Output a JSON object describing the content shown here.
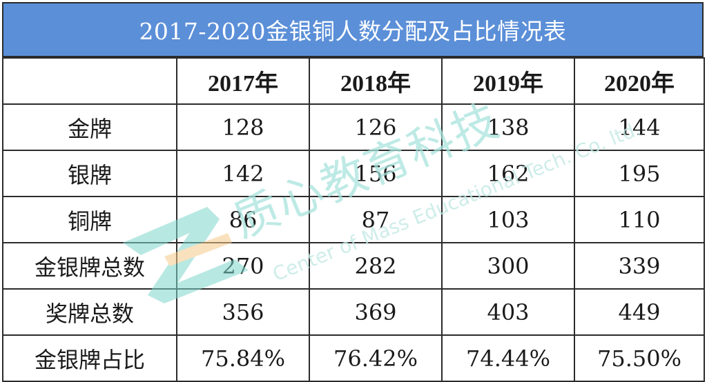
{
  "table": {
    "title": "2017-2020金银铜人数分配及占比情况表",
    "headers": [
      "",
      "2017年",
      "2018年",
      "2019年",
      "2020年"
    ],
    "rows": [
      {
        "label": "金牌",
        "values": [
          "128",
          "126",
          "138",
          "144"
        ]
      },
      {
        "label": "银牌",
        "values": [
          "142",
          "156",
          "162",
          "195"
        ]
      },
      {
        "label": "铜牌",
        "values": [
          "86",
          "87",
          "103",
          "110"
        ]
      },
      {
        "label": "金银牌总数",
        "values": [
          "270",
          "282",
          "300",
          "339"
        ]
      },
      {
        "label": "奖牌总数",
        "values": [
          "356",
          "369",
          "403",
          "449"
        ]
      },
      {
        "label": "金银牌占比",
        "values": [
          "75.84%",
          "76.42%",
          "74.44%",
          "75.50%"
        ]
      }
    ]
  },
  "watermark": {
    "cn_text": "质心教育科技",
    "en_text": "Center of Mass Educational Tech. Co. ltd.",
    "logo_letter": "Z",
    "colors": {
      "teal": "#7fd6cc",
      "orange": "#f6c98a",
      "text": "#a8e3dc"
    }
  },
  "colors": {
    "title_bg": "#5b8fd8",
    "title_text": "#ffffff",
    "border": "#2b2b2b"
  }
}
